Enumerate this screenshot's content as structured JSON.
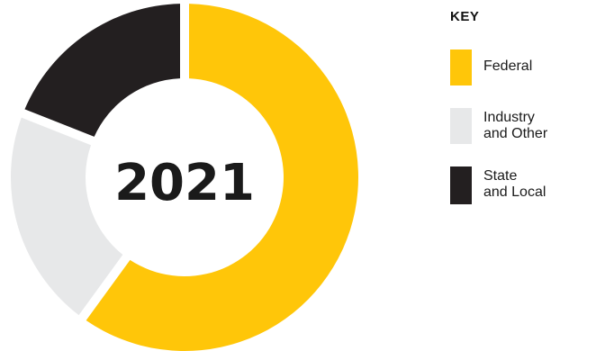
{
  "chart_data": {
    "type": "pie",
    "variant": "donut",
    "center_label": "2021",
    "categories": [
      "Federal",
      "Industry and Other",
      "State and Local"
    ],
    "values": [
      60,
      21,
      19
    ],
    "colors": [
      "#FFC609",
      "#E7E8E9",
      "#231F20"
    ]
  },
  "legend": {
    "title": "KEY",
    "items": [
      {
        "line1": "Federal",
        "line2": "",
        "color": "#FFC609"
      },
      {
        "line1": "Industry",
        "line2": "and Other",
        "color": "#E7E8E9"
      },
      {
        "line1": "State",
        "line2": "and Local",
        "color": "#231F20"
      }
    ]
  }
}
